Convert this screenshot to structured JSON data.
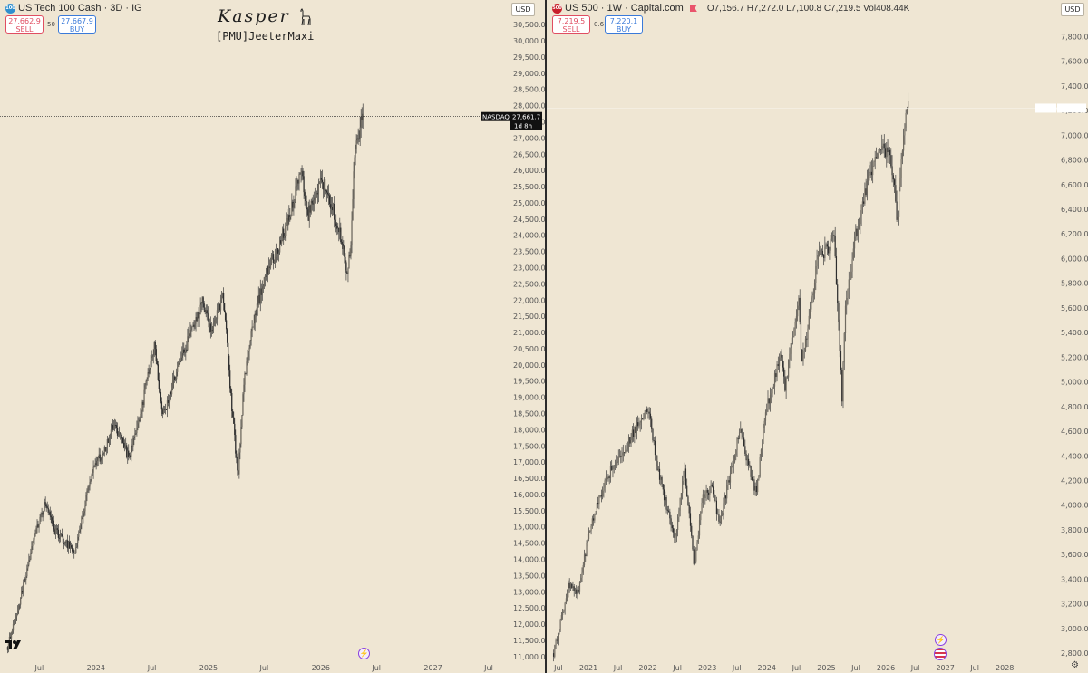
{
  "panels": [
    {
      "header": {
        "icon": "nasdaq-circle-icon",
        "icon_text": "100",
        "symbol_title": "US Tech 100 Cash · 3D · IG",
        "sell_price": "27,662.9",
        "sell_label": "SELL",
        "spread": "50",
        "buy_price": "27,667.9",
        "buy_label": "BUY",
        "currency": "USD"
      },
      "watermark": {
        "title": "Kasper",
        "subtitle": "[PMU]JeeterMaxi",
        "icon": "llama-icon"
      },
      "last_price_tag": {
        "symbol": "NASDAQ",
        "price": "27,661.7",
        "countdown": "1d 8h"
      },
      "event_icon": "lightning-icon",
      "logo_icon": "tradingview-logo-icon",
      "chart_data": {
        "type": "candlestick",
        "title": "US Tech 100 Cash · 3D · IG",
        "x_range": [
          "2023-03",
          "2027-09"
        ],
        "x_ticks": [
          {
            "label": "Jul",
            "date": "2023-07"
          },
          {
            "label": "2024",
            "date": "2024-01"
          },
          {
            "label": "Jul",
            "date": "2024-07"
          },
          {
            "label": "2025",
            "date": "2025-01"
          },
          {
            "label": "Jul",
            "date": "2025-07"
          },
          {
            "label": "2026",
            "date": "2026-01"
          },
          {
            "label": "Jul",
            "date": "2026-07"
          },
          {
            "label": "2027",
            "date": "2027-01"
          },
          {
            "label": "Jul",
            "date": "2027-07"
          }
        ],
        "y_range": [
          10800,
          30700
        ],
        "y_ticks": [
          "11,000.0",
          "11,500.0",
          "12,000.0",
          "12,500.0",
          "13,000.0",
          "13,500.0",
          "14,000.0",
          "14,500.0",
          "15,000.0",
          "15,500.0",
          "16,000.0",
          "16,500.0",
          "17,000.0",
          "17,500.0",
          "18,000.0",
          "18,500.0",
          "19,000.0",
          "19,500.0",
          "20,000.0",
          "20,500.0",
          "21,000.0",
          "21,500.0",
          "22,000.0",
          "22,500.0",
          "23,000.0",
          "23,500.0",
          "24,000.0",
          "24,500.0",
          "25,000.0",
          "25,500.0",
          "26,000.0",
          "26,500.0",
          "27,000.0",
          "27,500.0",
          "28,000.0",
          "28,500.0",
          "29,000.0",
          "29,500.0",
          "30,000.0",
          "30,500.0"
        ],
        "last_price": 27661.7,
        "price_points": [
          [
            "2023-03-20",
            11300
          ],
          [
            "2023-05-01",
            12800
          ],
          [
            "2023-06-15",
            14700
          ],
          [
            "2023-07-20",
            15750
          ],
          [
            "2023-08-20",
            14900
          ],
          [
            "2023-10-26",
            14200
          ],
          [
            "2023-11-30",
            15900
          ],
          [
            "2023-12-28",
            16900
          ],
          [
            "2024-01-31",
            17400
          ],
          [
            "2024-03-01",
            18200
          ],
          [
            "2024-04-19",
            17100
          ],
          [
            "2024-05-31",
            18800
          ],
          [
            "2024-07-10",
            20600
          ],
          [
            "2024-08-05",
            18400
          ],
          [
            "2024-09-30",
            20100
          ],
          [
            "2024-11-10",
            21100
          ],
          [
            "2024-12-15",
            22000
          ],
          [
            "2025-01-10",
            21000
          ],
          [
            "2025-02-18",
            22200
          ],
          [
            "2025-03-12",
            19400
          ],
          [
            "2025-04-07",
            16500
          ],
          [
            "2025-04-25",
            19400
          ],
          [
            "2025-05-30",
            21500
          ],
          [
            "2025-07-10",
            22900
          ],
          [
            "2025-08-20",
            23700
          ],
          [
            "2025-09-30",
            24900
          ],
          [
            "2025-10-30",
            26000
          ],
          [
            "2025-11-20",
            24600
          ],
          [
            "2026-01-05",
            25700
          ],
          [
            "2026-02-10",
            24800
          ],
          [
            "2026-03-10",
            23900
          ],
          [
            "2026-03-28",
            22800
          ],
          [
            "2026-04-10",
            23900
          ],
          [
            "2026-04-20",
            26300
          ],
          [
            "2026-05-10",
            27400
          ],
          [
            "2026-05-20",
            27900
          ]
        ]
      }
    },
    {
      "header": {
        "icon": "sp500-circle-icon",
        "icon_text": "500",
        "symbol_title": "US 500 · 1W · Capital.com",
        "ohlc": "O7,156.7  H7,272.0  L7,100.8  C7,219.5  Vol408.44K",
        "sell_price": "7,219.5",
        "sell_label": "SELL",
        "spread": "0.6",
        "buy_price": "7,220.1",
        "buy_label": "BUY",
        "currency": "USD"
      },
      "last_price_tag": {
        "symbol": "US500",
        "price": "7,219.5"
      },
      "event_icon": "lightning-icon",
      "flag_icon": "us-flag-icon",
      "settings_icon": "gear-icon",
      "chart_data": {
        "type": "candlestick",
        "title": "US 500 · 1W · Capital.com",
        "x_range": [
          "2020-05",
          "2028-11"
        ],
        "x_ticks": [
          {
            "label": "Jul",
            "date": "2020-07"
          },
          {
            "label": "2021",
            "date": "2021-01"
          },
          {
            "label": "Jul",
            "date": "2021-07"
          },
          {
            "label": "2022",
            "date": "2022-01"
          },
          {
            "label": "Jul",
            "date": "2022-07"
          },
          {
            "label": "2023",
            "date": "2023-01"
          },
          {
            "label": "Jul",
            "date": "2023-07"
          },
          {
            "label": "2024",
            "date": "2024-01"
          },
          {
            "label": "Jul",
            "date": "2024-07"
          },
          {
            "label": "2025",
            "date": "2025-01"
          },
          {
            "label": "Jul",
            "date": "2025-07"
          },
          {
            "label": "2026",
            "date": "2026-01"
          },
          {
            "label": "Jul",
            "date": "2026-07"
          },
          {
            "label": "2027",
            "date": "2027-01"
          },
          {
            "label": "Jul",
            "date": "2027-07"
          },
          {
            "label": "2028",
            "date": "2028-01"
          }
        ],
        "y_range": [
          2720,
          7950
        ],
        "y_ticks": [
          "2,800.0",
          "3,000.0",
          "3,200.0",
          "3,400.0",
          "3,600.0",
          "3,800.0",
          "4,000.0",
          "4,200.0",
          "4,400.0",
          "4,600.0",
          "4,800.0",
          "5,000.0",
          "5,200.0",
          "5,400.0",
          "5,600.0",
          "5,800.0",
          "6,000.0",
          "6,200.0",
          "6,400.0",
          "6,600.0",
          "6,800.0",
          "7,000.0",
          "7,200.0",
          "7,400.0",
          "7,600.0",
          "7,800.0"
        ],
        "last_price": 7219.5,
        "price_points": [
          [
            "2020-06-01",
            2800
          ],
          [
            "2020-09-01",
            3350
          ],
          [
            "2020-11-01",
            3300
          ],
          [
            "2021-01-01",
            3750
          ],
          [
            "2021-04-01",
            4150
          ],
          [
            "2021-07-01",
            4400
          ],
          [
            "2021-09-01",
            4500
          ],
          [
            "2021-11-15",
            4700
          ],
          [
            "2022-01-03",
            4800
          ],
          [
            "2022-03-01",
            4300
          ],
          [
            "2022-06-15",
            3700
          ],
          [
            "2022-08-15",
            4300
          ],
          [
            "2022-10-12",
            3500
          ],
          [
            "2022-12-01",
            4050
          ],
          [
            "2023-02-01",
            4150
          ],
          [
            "2023-03-15",
            3850
          ],
          [
            "2023-07-20",
            4600
          ],
          [
            "2023-10-27",
            4100
          ],
          [
            "2023-12-30",
            4780
          ],
          [
            "2024-03-28",
            5250
          ],
          [
            "2024-04-19",
            4950
          ],
          [
            "2024-07-15",
            5650
          ],
          [
            "2024-08-05",
            5150
          ],
          [
            "2024-11-10",
            6000
          ],
          [
            "2025-02-18",
            6150
          ],
          [
            "2025-03-15",
            5550
          ],
          [
            "2025-04-07",
            4850
          ],
          [
            "2025-04-25",
            5550
          ],
          [
            "2025-06-30",
            6200
          ],
          [
            "2025-09-30",
            6700
          ],
          [
            "2025-12-01",
            6900
          ],
          [
            "2026-01-20",
            6850
          ],
          [
            "2026-02-20",
            6650
          ],
          [
            "2026-03-12",
            6300
          ],
          [
            "2026-04-10",
            6900
          ],
          [
            "2026-05-01",
            7150
          ],
          [
            "2026-05-20",
            7219.5
          ]
        ]
      }
    }
  ]
}
